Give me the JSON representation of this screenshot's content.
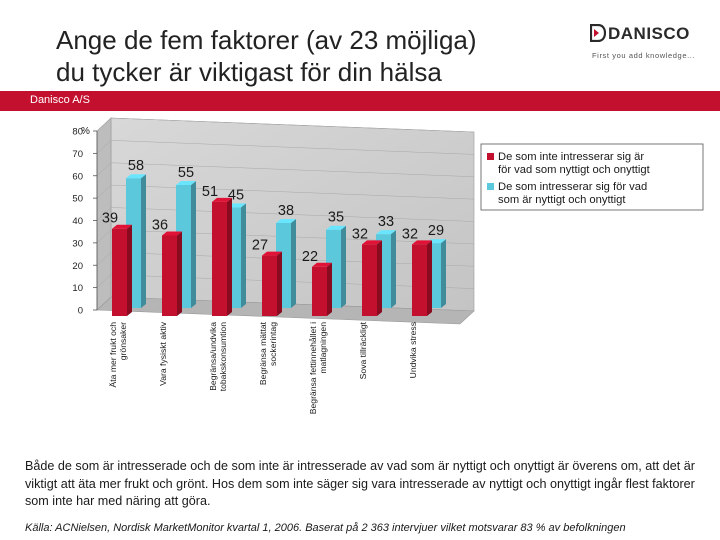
{
  "title": {
    "line1": "Ange de fem faktorer (av 23 möjliga)",
    "line2": "du tycker är viktigast för din hälsa"
  },
  "logo": {
    "name": "DANISCO",
    "tagline": "First you add knowledge..."
  },
  "band": {
    "label": "Danisco A/S"
  },
  "chart_data": {
    "type": "bar",
    "orientation": "vertical-3d",
    "ylabel": "%",
    "ylim": [
      0,
      80
    ],
    "yticks": [
      0,
      10,
      20,
      30,
      40,
      50,
      60,
      70,
      80
    ],
    "categories": [
      [
        "Äta mer frukt och",
        "grönsaker"
      ],
      [
        "Vara fysiskt aktiv"
      ],
      [
        "Begränsa/undvika",
        "tobakskonsumtion"
      ],
      [
        "Begränsa mättat",
        "sockerintag"
      ],
      [
        "Begränsa fettinnehållet i",
        "matlagningen"
      ],
      [
        "Sova tillräckligt"
      ],
      [
        "Undvika stress"
      ]
    ],
    "series": [
      {
        "name": "De som inte intresserar sig för vad som är nyttigt och onyttigt",
        "color": "#c3102e",
        "values": [
          39,
          36,
          51,
          27,
          22,
          32,
          32
        ]
      },
      {
        "name": "De som intresserar sig för vad som är nyttigt och onyttigt",
        "color": "#5bc8dc",
        "values": [
          58,
          55,
          45,
          38,
          35,
          33,
          29
        ]
      }
    ],
    "legend_position": "right"
  },
  "body_text": "Både de som är intresserade och de som inte är intresserade av vad som är nyttigt och onyttigt är överens om, att det är viktigt att äta mer frukt och grönt. Hos dem som inte säger sig vara intresserade av nyttigt och onyttigt ingår flest faktorer som inte har med näring att göra.",
  "source": "Källa: ACNielsen, Nordisk MarketMonitor kvartal 1, 2006. Baserat på 2 363  intervjuer vilket motsvarar 83 % av befolkningen"
}
